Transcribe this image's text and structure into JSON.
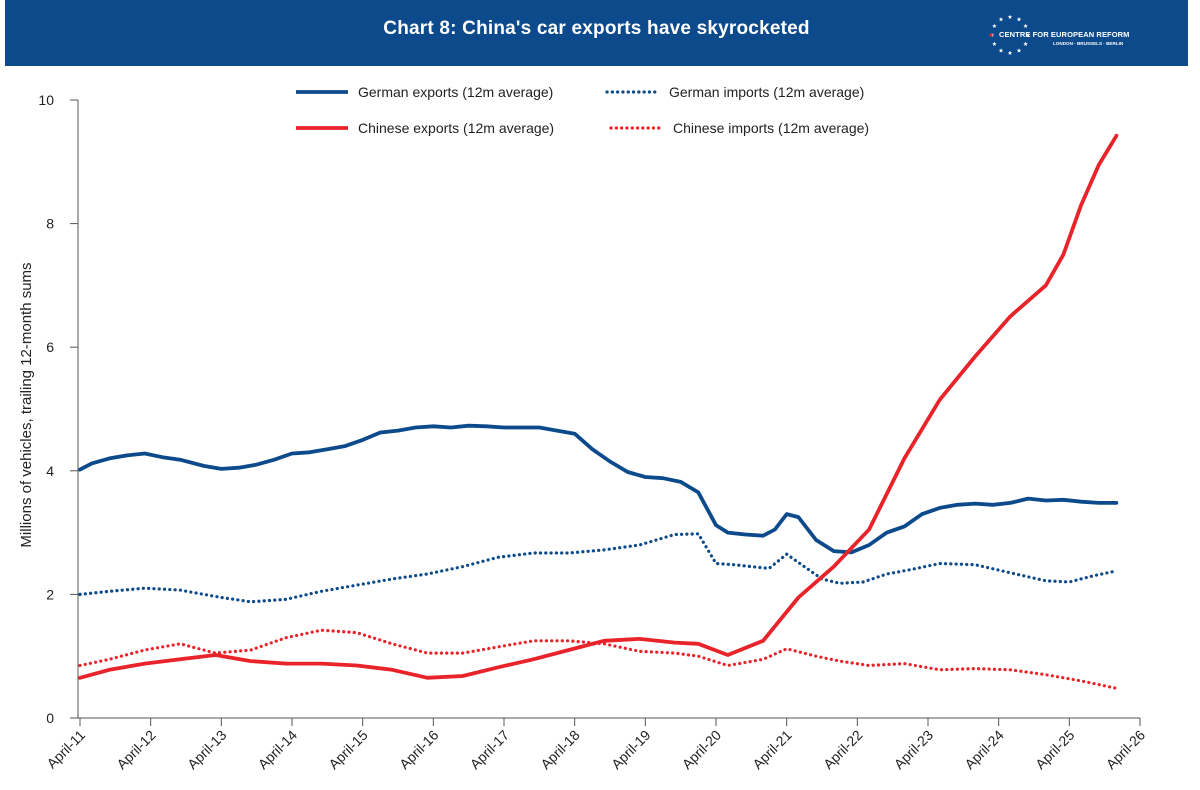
{
  "header": {
    "title": "Chart 8: China's car exports have skyrocketed",
    "logo_name": "CENTRE FOR EUROPEAN REFORM",
    "logo_cities": "LONDON · BRUSSELS · BERLIN",
    "background_color": "#0d4a8b",
    "logo_icon": "eu-stars-icon"
  },
  "chart_data": {
    "type": "line",
    "title": "Chart 8: China's car exports have skyrocketed",
    "xlabel": "",
    "ylabel": "Millions of vehicles, trailing 12-month sums",
    "x_ticks": [
      "April-11",
      "April-12",
      "April-13",
      "April-14",
      "April-15",
      "April-16",
      "April-17",
      "April-18",
      "April-19",
      "April-20",
      "April-21",
      "April-22",
      "April-23",
      "April-24",
      "April-25",
      "April-26"
    ],
    "xlim": [
      "2011-04",
      "2026-04"
    ],
    "ylim": [
      0,
      10
    ],
    "y_ticks": [
      0,
      2,
      4,
      6,
      8,
      10
    ],
    "grid": false,
    "legend": "top-center",
    "colors": {
      "german": "#0d4a8b",
      "chinese": "#e8232a"
    },
    "series": [
      {
        "name": "German exports (12m average)",
        "color": "#0d4a8b",
        "style": "solid",
        "x": [
          "2011-04",
          "2011-06",
          "2011-09",
          "2011-12",
          "2012-03",
          "2012-06",
          "2012-09",
          "2013-01",
          "2013-04",
          "2013-07",
          "2013-10",
          "2014-01",
          "2014-04",
          "2014-07",
          "2014-10",
          "2015-01",
          "2015-04",
          "2015-07",
          "2015-10",
          "2016-01",
          "2016-04",
          "2016-07",
          "2016-10",
          "2017-01",
          "2017-04",
          "2017-07",
          "2017-10",
          "2018-01",
          "2018-04",
          "2018-07",
          "2018-10",
          "2019-01",
          "2019-04",
          "2019-07",
          "2019-10",
          "2020-01",
          "2020-04",
          "2020-06",
          "2020-09",
          "2020-12",
          "2021-02",
          "2021-04",
          "2021-06",
          "2021-09",
          "2021-12",
          "2022-03",
          "2022-06",
          "2022-09",
          "2022-12",
          "2023-03",
          "2023-06",
          "2023-09",
          "2023-12",
          "2024-03",
          "2024-06",
          "2024-09",
          "2024-12",
          "2025-03",
          "2025-06",
          "2025-09",
          "2025-12"
        ],
        "y": [
          4.02,
          4.12,
          4.2,
          4.25,
          4.28,
          4.22,
          4.18,
          4.08,
          4.03,
          4.05,
          4.1,
          4.18,
          4.28,
          4.3,
          4.35,
          4.4,
          4.5,
          4.62,
          4.65,
          4.7,
          4.72,
          4.7,
          4.73,
          4.72,
          4.7,
          4.7,
          4.7,
          4.65,
          4.6,
          4.35,
          4.15,
          3.98,
          3.9,
          3.88,
          3.82,
          3.65,
          3.12,
          3.0,
          2.97,
          2.95,
          3.05,
          3.3,
          3.25,
          2.88,
          2.7,
          2.68,
          2.8,
          3.0,
          3.1,
          3.3,
          3.4,
          3.45,
          3.47,
          3.45,
          3.48,
          3.55,
          3.52,
          3.53,
          3.5,
          3.48,
          3.48
        ]
      },
      {
        "name": "German imports (12m average)",
        "color": "#0d4a8b",
        "style": "dotted",
        "x": [
          "2011-04",
          "2011-09",
          "2012-03",
          "2012-09",
          "2013-04",
          "2013-09",
          "2014-03",
          "2014-09",
          "2015-03",
          "2015-09",
          "2016-03",
          "2016-09",
          "2017-03",
          "2017-09",
          "2018-03",
          "2018-09",
          "2019-03",
          "2019-09",
          "2020-01",
          "2020-04",
          "2020-07",
          "2020-10",
          "2021-01",
          "2021-04",
          "2021-07",
          "2021-10",
          "2022-01",
          "2022-05",
          "2022-09",
          "2023-01",
          "2023-06",
          "2023-12",
          "2024-06",
          "2024-12",
          "2025-04",
          "2025-08",
          "2025-12"
        ],
        "y": [
          2.0,
          2.05,
          2.1,
          2.07,
          1.95,
          1.88,
          1.92,
          2.05,
          2.15,
          2.25,
          2.33,
          2.45,
          2.6,
          2.67,
          2.67,
          2.72,
          2.8,
          2.97,
          2.98,
          2.5,
          2.48,
          2.45,
          2.42,
          2.65,
          2.45,
          2.25,
          2.18,
          2.2,
          2.33,
          2.4,
          2.5,
          2.48,
          2.35,
          2.22,
          2.2,
          2.3,
          2.38
        ]
      },
      {
        "name": "Chinese exports (12m average)",
        "color": "#e8232a",
        "style": "solid",
        "x": [
          "2011-04",
          "2011-09",
          "2012-03",
          "2012-09",
          "2013-03",
          "2013-09",
          "2014-03",
          "2014-09",
          "2015-03",
          "2015-09",
          "2016-03",
          "2016-09",
          "2017-03",
          "2017-09",
          "2018-03",
          "2018-09",
          "2019-03",
          "2019-09",
          "2020-01",
          "2020-06",
          "2020-12",
          "2021-06",
          "2021-12",
          "2022-06",
          "2022-12",
          "2023-06",
          "2023-12",
          "2024-06",
          "2024-12",
          "2025-03",
          "2025-06",
          "2025-09",
          "2025-12"
        ],
        "y": [
          0.65,
          0.78,
          0.88,
          0.95,
          1.02,
          0.92,
          0.88,
          0.88,
          0.85,
          0.78,
          0.65,
          0.68,
          0.82,
          0.95,
          1.1,
          1.25,
          1.28,
          1.22,
          1.2,
          1.02,
          1.25,
          1.95,
          2.45,
          3.05,
          4.2,
          5.15,
          5.85,
          6.5,
          7.0,
          7.5,
          8.3,
          8.95,
          9.42
        ]
      },
      {
        "name": "Chinese imports (12m average)",
        "color": "#e8232a",
        "style": "dotted",
        "x": [
          "2011-04",
          "2011-09",
          "2012-03",
          "2012-09",
          "2013-03",
          "2013-09",
          "2014-03",
          "2014-09",
          "2015-03",
          "2015-09",
          "2016-03",
          "2016-09",
          "2017-03",
          "2017-09",
          "2018-03",
          "2018-09",
          "2019-03",
          "2019-09",
          "2020-01",
          "2020-06",
          "2020-12",
          "2021-04",
          "2021-09",
          "2022-01",
          "2022-06",
          "2022-12",
          "2023-06",
          "2023-12",
          "2024-06",
          "2024-12",
          "2025-06",
          "2025-12"
        ],
        "y": [
          0.85,
          0.95,
          1.1,
          1.2,
          1.05,
          1.1,
          1.3,
          1.42,
          1.38,
          1.2,
          1.05,
          1.05,
          1.15,
          1.25,
          1.25,
          1.2,
          1.08,
          1.05,
          1.0,
          0.85,
          0.95,
          1.12,
          1.0,
          0.92,
          0.85,
          0.88,
          0.78,
          0.8,
          0.78,
          0.7,
          0.6,
          0.48
        ]
      }
    ]
  }
}
